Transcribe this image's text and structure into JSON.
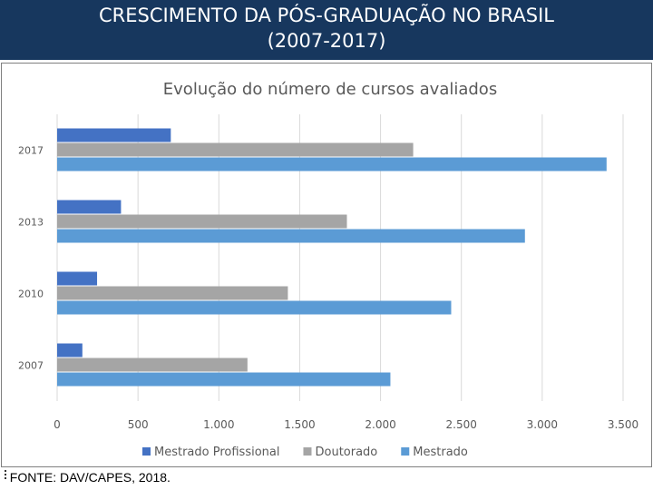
{
  "header": {
    "title_line1": "CRESCIMENTO DA PÓS-GRADUAÇÃO NO BRASIL",
    "title_line2": "(2007-2017)"
  },
  "colors": {
    "header_bg": "#17375e",
    "mestrado_profissional": "#4472c4",
    "doutorado": "#a5a5a5",
    "mestrado": "#5b9bd5"
  },
  "chart_data": {
    "type": "bar",
    "orientation": "horizontal",
    "title": "Evolução do número de cursos avaliados",
    "categories": [
      "2017",
      "2013",
      "2010",
      "2007"
    ],
    "series": [
      {
        "name": "Mestrado Profissional",
        "color": "#4472c4",
        "values": [
          703,
          395,
          247,
          156
        ]
      },
      {
        "name": "Doutorado",
        "color": "#a5a5a5",
        "values": [
          2202,
          1792,
          1427,
          1177
        ]
      },
      {
        "name": "Mestrado",
        "color": "#5b9bd5",
        "values": [
          3398,
          2893,
          2437,
          2061
        ]
      }
    ],
    "xlim": [
      0,
      3500
    ],
    "x_ticks": [
      "0",
      "500",
      "1.000",
      "1.500",
      "2.000",
      "2.500",
      "3.000",
      "3.500"
    ],
    "grid": true,
    "legend_position": "bottom"
  },
  "footer": {
    "source": "FONTE: DAV/CAPES, 2018."
  }
}
